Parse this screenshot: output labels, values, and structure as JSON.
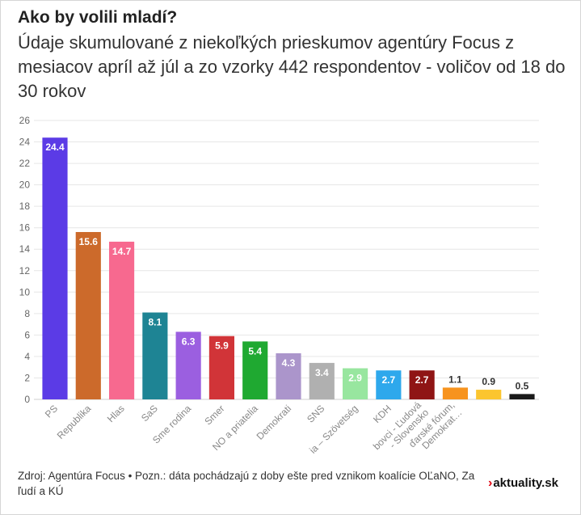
{
  "title": "Ako by volili mladí?",
  "subtitle": "Údaje skumulované z niekoľkých prieskumov agentúry Focus z mesiacov apríl až júl a zo vzorky 442 respondentov - voličov od 18 do 30 rokov",
  "footer": {
    "source": "Zdroj: Agentúra Focus • Pozn.: dáta pochádzajú z doby ešte pred vznikom koalície OĽaNO, Za ľudí a KÚ",
    "logo_mark": "›",
    "logo_text": "aktuality.sk"
  },
  "chart_data": {
    "type": "bar",
    "categories": [
      "PS",
      "Republika",
      "Hlas",
      "SaS",
      "Sme rodina",
      "Smer",
      "NO a priatelia",
      "Demokrati",
      "SNS",
      "Aliancia – Szövetség",
      "KDH",
      "Kotlebovci - Ľudová strana Naše Slovensko",
      "Maďarské fórum, Demokrati…",
      "",
      ""
    ],
    "tick_labels": [
      "PS",
      "Republika",
      "Hlas",
      "SaS",
      "Sme rodina",
      "Smer",
      "NO a priatelia",
      "Demokrati",
      "SNS",
      "ia – Szövetség",
      "KDH",
      "bovci - Ľudová\n- Slovensko",
      "ďarské fórum,\nDemokrat…",
      "",
      ""
    ],
    "values": [
      24.4,
      15.6,
      14.7,
      8.1,
      6.3,
      5.9,
      5.4,
      4.3,
      3.4,
      2.9,
      2.7,
      2.7,
      1.1,
      0.9,
      0.5
    ],
    "data_labels": [
      "24.4",
      "15.6",
      "14.7",
      "8.1",
      "6.3",
      "5.9",
      "5.4",
      "4.3",
      "3.4",
      "2.9",
      "2.7",
      "2.7",
      "1.1",
      "0.9",
      "0.5"
    ],
    "colors": [
      "#5b3be6",
      "#cc6a2b",
      "#f7698f",
      "#1e8494",
      "#9b5fe0",
      "#d13438",
      "#1fa931",
      "#ab95cb",
      "#b0b0b0",
      "#98e69f",
      "#2ea8ec",
      "#8f1515",
      "#f7931e",
      "#fbc52f",
      "#1a1a1a"
    ],
    "ylim": [
      0,
      26
    ],
    "yticks": [
      0,
      2,
      4,
      6,
      8,
      10,
      12,
      14,
      16,
      18,
      20,
      22,
      24,
      26
    ],
    "grid": true,
    "xlabel": "",
    "ylabel": ""
  }
}
